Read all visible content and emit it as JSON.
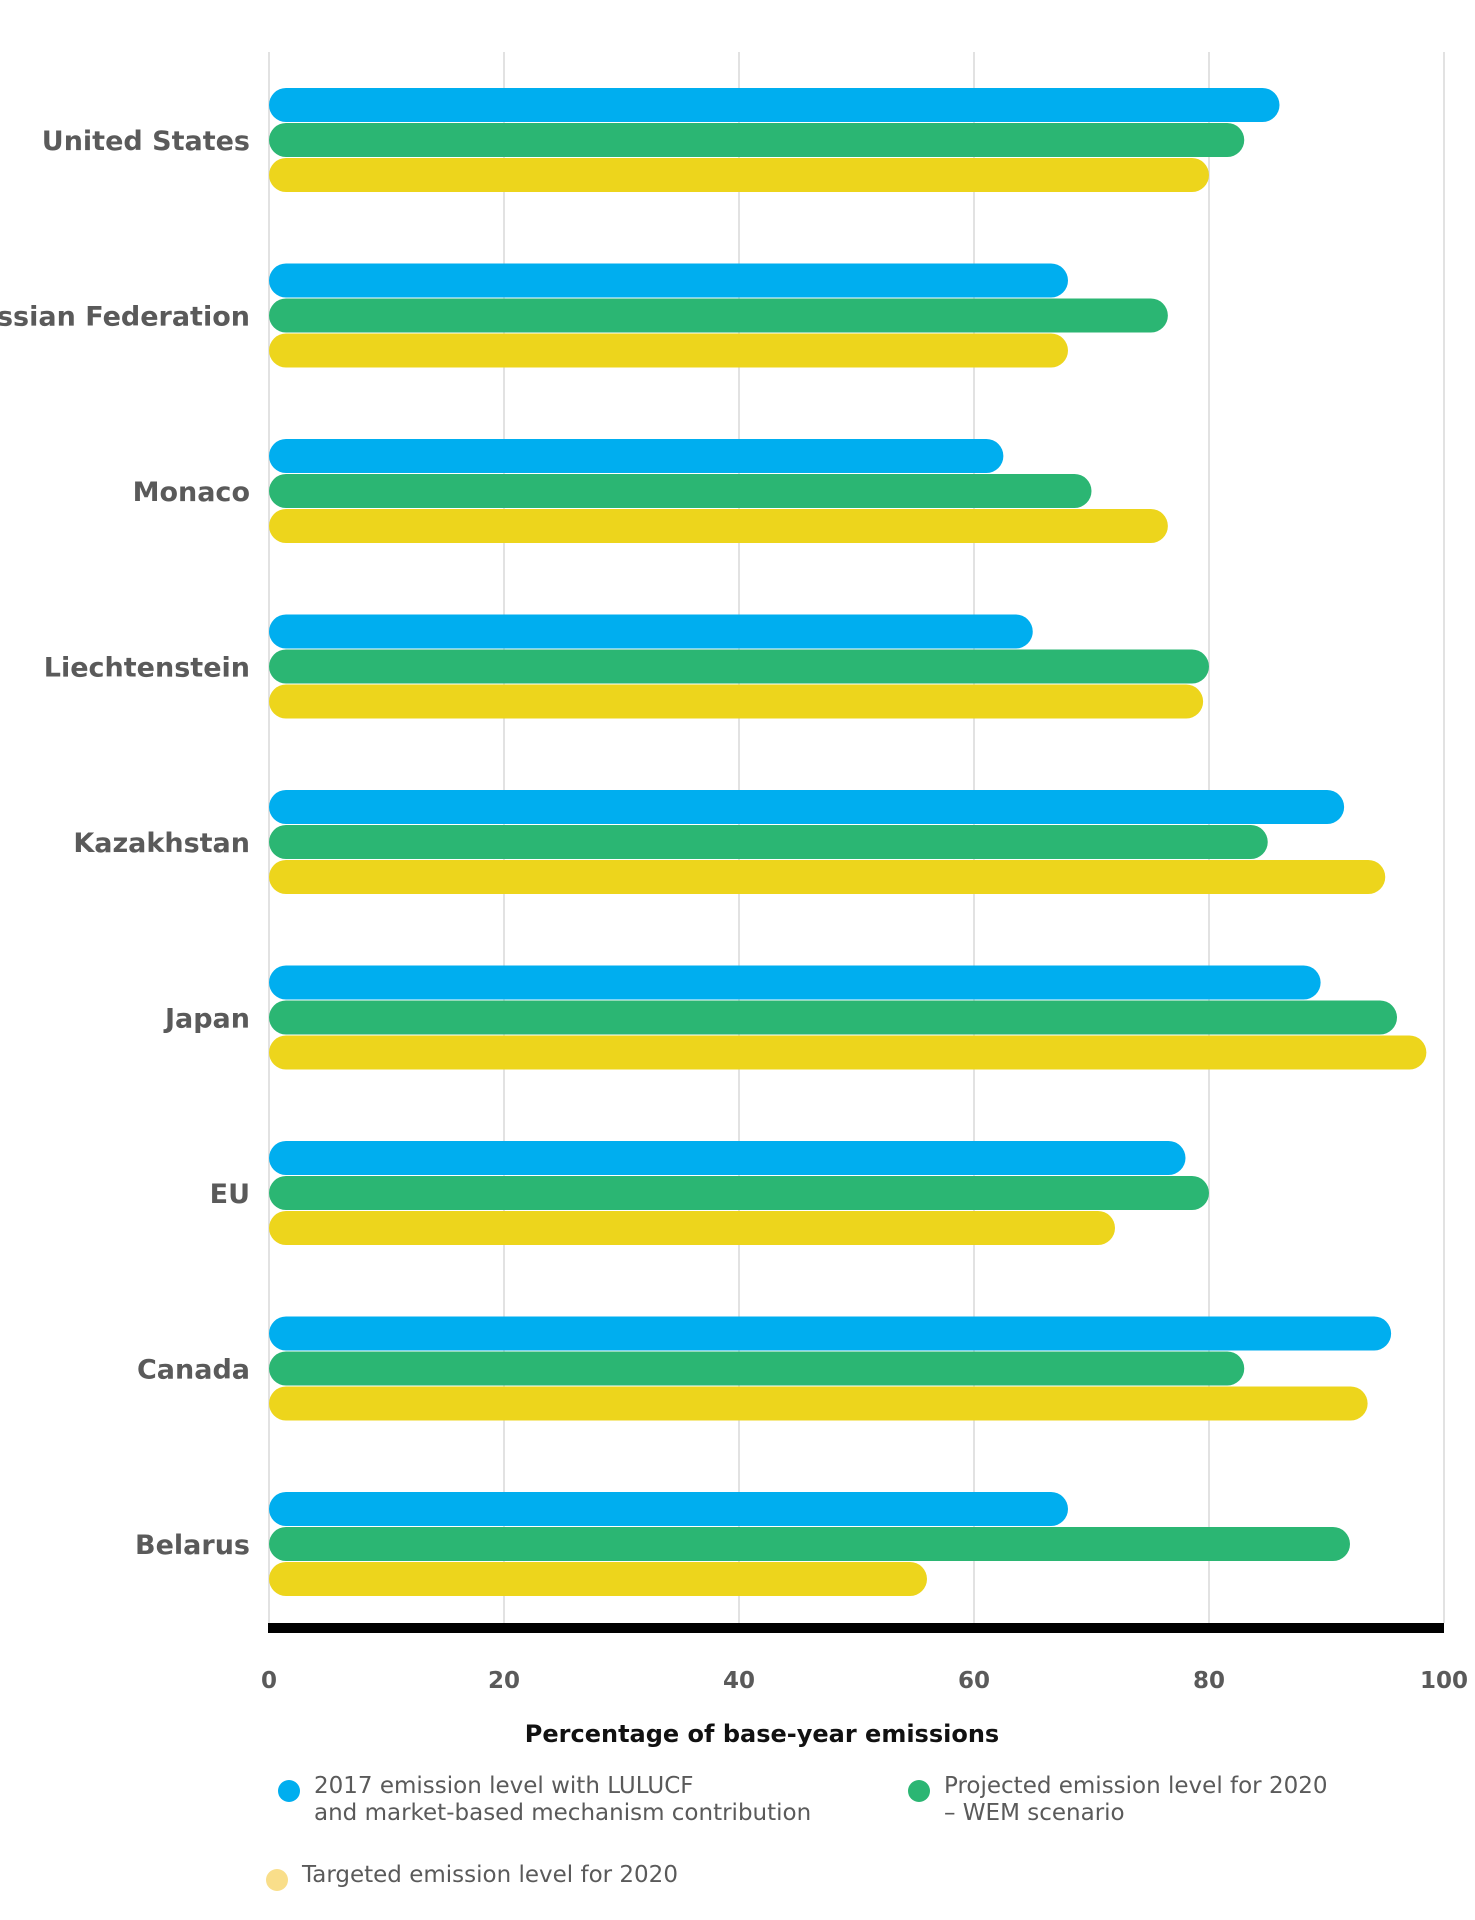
{
  "colors": {
    "s2017": "#00aeef",
    "projected": "#2bb673",
    "target": "#edd51c",
    "target_legend": "#f9de8a"
  },
  "chart_data": {
    "type": "bar",
    "orientation": "horizontal",
    "categories": [
      "United States",
      "Russian Federation",
      "Monaco",
      "Liechtenstein",
      "Kazakhstan",
      "Japan",
      "EU",
      "Canada",
      "Belarus"
    ],
    "series": [
      {
        "name": "2017 emission level with LULUCF\nand market-based mechanism contribution",
        "values": [
          86,
          68,
          62.5,
          65,
          91.5,
          89.5,
          78,
          95.5,
          68
        ]
      },
      {
        "name": "Projected emission level for 2020\n– WEM scenario",
        "values": [
          83,
          76.5,
          70,
          80,
          85,
          96,
          80,
          83,
          92
        ]
      },
      {
        "name": "Targeted emission level for 2020",
        "values": [
          80,
          68,
          76.5,
          79.5,
          95,
          98.5,
          72,
          93.5,
          56
        ]
      }
    ],
    "x_ticks": [
      "0",
      "20",
      "40",
      "60",
      "80",
      "100"
    ],
    "xlim": [
      0,
      100
    ],
    "xlabel": "Percentage of base-year emissions",
    "grid": true,
    "legend_position": "bottom"
  }
}
